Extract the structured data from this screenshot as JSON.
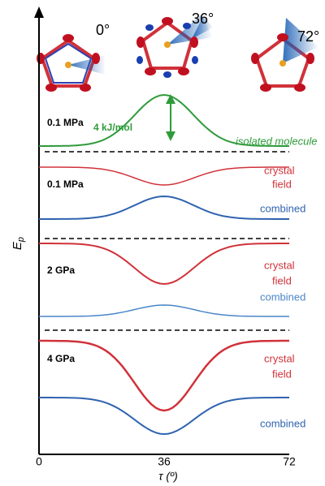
{
  "chart_data": {
    "type": "line",
    "xlabel": "τ (º)",
    "ylabel": {
      "text": "E",
      "subscript": "p"
    },
    "xlim": [
      0,
      72
    ],
    "xticks": [
      0,
      36,
      72
    ],
    "angles": [
      "0°",
      "36°",
      "72°"
    ],
    "barrier_label": "4 kJ/mol",
    "panels": [
      {
        "pressure": "0.1 MPa",
        "curves": [
          {
            "label": "isolated molecule",
            "color": "#2e9b3a"
          }
        ]
      },
      {
        "pressure": "0.1 MPa",
        "curves": [
          {
            "label": [
              "crystal",
              "field"
            ],
            "color": "#d0323a"
          },
          {
            "label": [
              "combined"
            ],
            "color": "#2f63b0"
          }
        ]
      },
      {
        "pressure": "2 GPa",
        "curves": [
          {
            "label": [
              "crystal",
              "field"
            ],
            "color": "#d0323a"
          },
          {
            "label": [
              "combined"
            ],
            "color": "#4a86c8"
          }
        ]
      },
      {
        "pressure": "4 GPa",
        "curves": [
          {
            "label": [
              "crystal",
              "field"
            ],
            "color": "#d0323a"
          },
          {
            "label": [
              "combined"
            ],
            "color": "#2f63b0"
          }
        ]
      }
    ]
  }
}
